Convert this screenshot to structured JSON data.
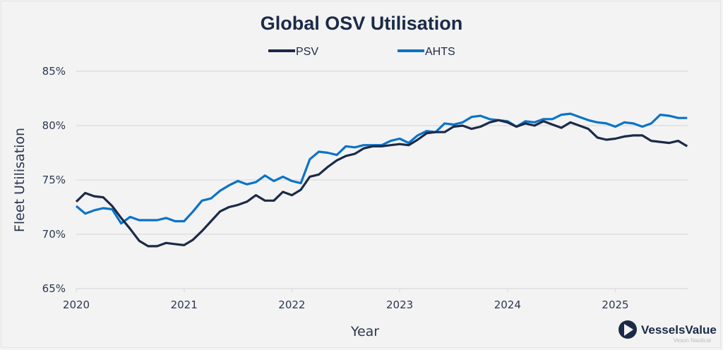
{
  "chart_data": {
    "type": "line",
    "title": "Global OSV Utilisation",
    "xlabel": "Year",
    "ylabel": "Fleet Utilisation",
    "ylim": [
      65,
      85
    ],
    "yticks": [
      65,
      70,
      75,
      80,
      85
    ],
    "ytick_labels": [
      "65%",
      "70%",
      "75%",
      "80%",
      "85%"
    ],
    "xlim": [
      "2020-01",
      "2025-09"
    ],
    "xtick_labels": [
      "2020",
      "2021",
      "2022",
      "2023",
      "2024",
      "2025"
    ],
    "grid": "horizontal",
    "legend_position": "top-center",
    "x_start": "2020-01",
    "x_frequency": "monthly",
    "series": [
      {
        "name": "PSV",
        "color": "#1b2a47",
        "values": [
          73.0,
          73.8,
          73.5,
          73.4,
          72.6,
          71.5,
          70.5,
          69.4,
          68.9,
          68.9,
          69.2,
          69.1,
          69.0,
          69.5,
          70.3,
          71.2,
          72.1,
          72.5,
          72.7,
          73.0,
          73.6,
          73.1,
          73.1,
          73.9,
          73.6,
          74.1,
          75.3,
          75.5,
          76.2,
          76.8,
          77.2,
          77.4,
          77.9,
          78.1,
          78.1,
          78.2,
          78.3,
          78.2,
          78.7,
          79.3,
          79.4,
          79.4,
          79.9,
          80.0,
          79.7,
          79.9,
          80.3,
          80.5,
          80.3,
          79.9,
          80.2,
          80.0,
          80.4,
          80.1,
          79.8,
          80.3,
          80.0,
          79.7,
          78.9,
          78.7,
          78.8,
          79.0,
          79.1,
          79.1,
          78.6,
          78.5,
          78.4,
          78.6,
          78.1
        ]
      },
      {
        "name": "AHTS",
        "color": "#0a73c9",
        "values": [
          72.6,
          71.9,
          72.2,
          72.4,
          72.3,
          71.0,
          71.6,
          71.3,
          71.3,
          71.3,
          71.5,
          71.2,
          71.2,
          72.1,
          73.1,
          73.3,
          74.0,
          74.5,
          74.9,
          74.6,
          74.8,
          75.4,
          74.9,
          75.3,
          74.9,
          74.7,
          76.9,
          77.6,
          77.5,
          77.3,
          78.1,
          78.0,
          78.2,
          78.2,
          78.2,
          78.6,
          78.8,
          78.4,
          79.1,
          79.5,
          79.4,
          80.2,
          80.1,
          80.3,
          80.8,
          80.9,
          80.6,
          80.5,
          80.4,
          79.9,
          80.4,
          80.3,
          80.6,
          80.6,
          81.0,
          81.1,
          80.8,
          80.5,
          80.3,
          80.2,
          79.9,
          80.3,
          80.2,
          79.9,
          80.2,
          81.0,
          80.9,
          80.7,
          80.7
        ]
      }
    ]
  },
  "branding": {
    "logo_name": "VesselsValue",
    "logo_subtitle": "Veson Nautical"
  }
}
